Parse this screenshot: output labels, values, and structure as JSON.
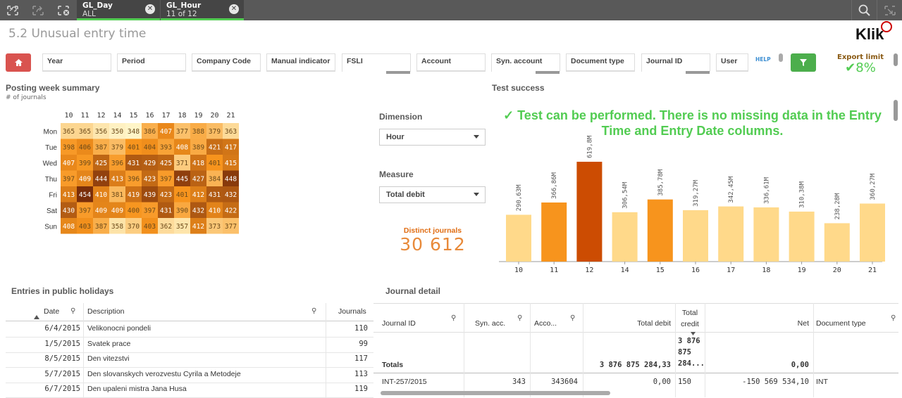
{
  "topbar": {
    "selections": [
      {
        "field": "GL_Day",
        "value": "ALL"
      },
      {
        "field": "GL_Hour",
        "value": "11 of 12"
      }
    ],
    "icons": [
      "back-icon",
      "forward-icon",
      "clear-selections-icon",
      "search-icon",
      "fullscreen-exit-icon"
    ]
  },
  "sheet": {
    "title": "5.2 Unusual entry time",
    "logo": "Klik"
  },
  "filters": {
    "labels": [
      "Year",
      "Period",
      "Company Code",
      "Manual indicator",
      "FSLI",
      "Account",
      "Syn. account",
      "Document type",
      "Journal ID",
      "User"
    ],
    "help": "HELP",
    "export_label": "Export limit",
    "export_value": "✔8%"
  },
  "heatmap": {
    "title": "Posting week summary",
    "subtitle": "# of journals",
    "hours": [
      "10",
      "11",
      "12",
      "14",
      "15",
      "16",
      "17",
      "18",
      "19",
      "20",
      "21"
    ],
    "days": [
      "Mon",
      "Tue",
      "Wed",
      "Thu",
      "Fri",
      "Sat",
      "Sun"
    ],
    "values": [
      [
        365,
        365,
        356,
        350,
        348,
        386,
        407,
        377,
        388,
        379,
        363
      ],
      [
        398,
        406,
        387,
        379,
        401,
        404,
        393,
        408,
        389,
        421,
        417
      ],
      [
        407,
        399,
        425,
        396,
        431,
        429,
        425,
        371,
        418,
        401,
        415
      ],
      [
        397,
        409,
        444,
        413,
        396,
        423,
        397,
        445,
        427,
        384,
        448
      ],
      [
        413,
        454,
        410,
        381,
        419,
        439,
        423,
        401,
        412,
        431,
        432
      ],
      [
        430,
        397,
        409,
        409,
        400,
        397,
        431,
        390,
        432,
        410,
        422
      ],
      [
        408,
        403,
        387,
        358,
        370,
        403,
        362,
        357,
        412,
        373,
        377
      ]
    ],
    "colors": {
      "low": "#fff5c8",
      "mid": "#f7941d",
      "high": "#7a2e0a"
    }
  },
  "controls": {
    "dimension_label": "Dimension",
    "dimension_value": "Hour",
    "measure_label": "Measure",
    "measure_value": "Total debit",
    "kpi_label": "Distinct journals",
    "kpi_value": "30 612"
  },
  "test": {
    "title": "Test success",
    "message": "✓ Test can be performed. There is no missing data in the Entry Time and Entry Date columns."
  },
  "chart_data": {
    "type": "bar",
    "categories": [
      "10",
      "11",
      "12",
      "14",
      "15",
      "16",
      "17",
      "18",
      "19",
      "20",
      "21"
    ],
    "values": [
      290.63,
      366.86,
      619.8,
      306.54,
      385.78,
      319.27,
      342.45,
      336.61,
      310.38,
      238.28,
      360.27
    ],
    "labels": [
      "290,63M",
      "366,86M",
      "619,8M",
      "306,54M",
      "385,78M",
      "319,27M",
      "342,45M",
      "336,61M",
      "310,38M",
      "238,28M",
      "360,27M"
    ],
    "ylim": [
      0,
      620
    ],
    "unit": "M",
    "colors": [
      "#ffd98a",
      "#f7941d",
      "#cc4c02",
      "#ffd98a",
      "#f7941d",
      "#ffd98a",
      "#ffd98a",
      "#ffd98a",
      "#ffd98a",
      "#ffd98a",
      "#ffd98a"
    ]
  },
  "holidays": {
    "title": "Entries in public holidays",
    "columns": [
      "Date",
      "Description",
      "Journals"
    ],
    "rows": [
      [
        "6/4/2015",
        "Velikonocni pondeli",
        "110"
      ],
      [
        "1/5/2015",
        "Svatek prace",
        "99"
      ],
      [
        "8/5/2015",
        "Den vitezstvi",
        "117"
      ],
      [
        "5/7/2015",
        "Den slovanskych verozvestu Cyrila a Metodeje",
        "113"
      ],
      [
        "6/7/2015",
        "Den upaleni mistra Jana Husa",
        "119"
      ]
    ]
  },
  "journal": {
    "title": "Journal detail",
    "columns": [
      "Journal ID",
      "Syn. acc.",
      "Acco...",
      "Total debit",
      "Total credit",
      "Net",
      "Document type"
    ],
    "totals_label": "Totals",
    "totals": {
      "total_debit": "3 876 875 284,33",
      "total_credit": "3 876 875 284...",
      "net": "0,00"
    },
    "rows": [
      [
        "INT-257/2015",
        "343",
        "343604",
        "0,00",
        "150",
        "-150 569 534,10",
        "INT"
      ]
    ]
  }
}
